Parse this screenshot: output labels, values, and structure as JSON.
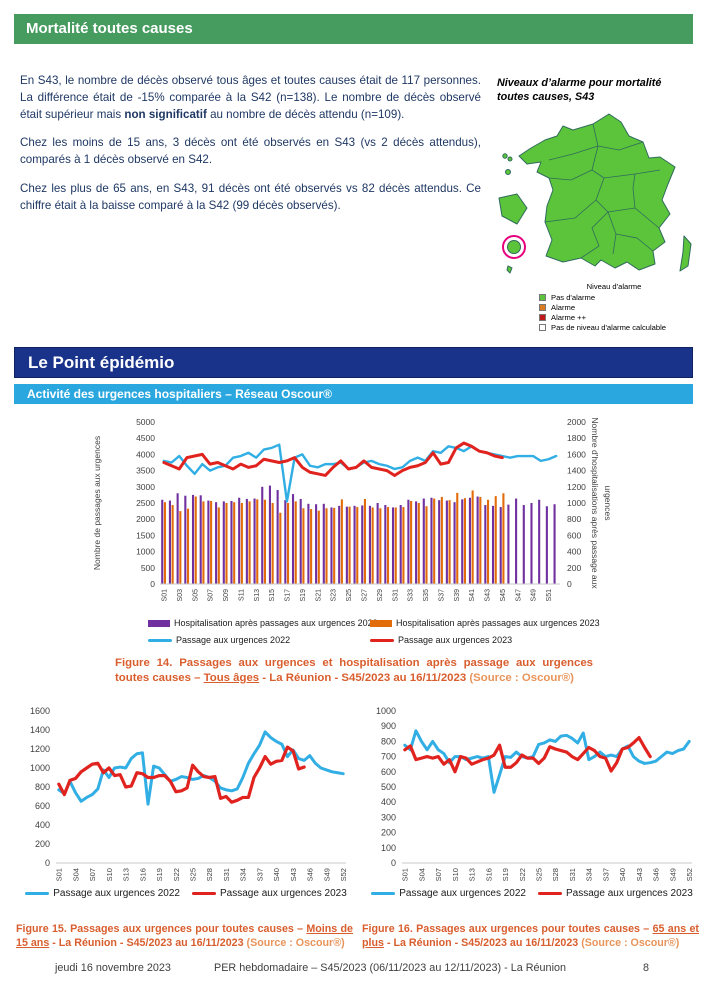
{
  "colors": {
    "green_banner": "#469B5F",
    "navy_banner": "#19338A",
    "cyan_banner": "#2AA7DF",
    "body_text": "#1F3864",
    "caption": "#D95E2E",
    "caption_source": "#E8945A"
  },
  "mortality_section": {
    "title": "Mortalité toutes causes",
    "paragraph1_start": "En S43, le nombre de décès observé tous âges et toutes causes était de 117 personnes. La différence était de -15% comparée à la S42 (n=138). Le nombre de décès observé était supérieur mais ",
    "paragraph1_bold": "non significatif",
    "paragraph1_end": " au nombre de décès attendu (n=109).",
    "paragraph2": "Chez les moins de 15 ans, 3 décès ont été observés en S43 (vs 2 décès attendus), comparés à 1 décès observé en S42.",
    "paragraph3": "Chez les plus de 65 ans, en S43, 91 décès ont été observés vs 82 décès attendus. Ce chiffre était à la baisse comparé à la S42 (99 décès observés)."
  },
  "map": {
    "title": "Niveaux d’alarme pour mortalité toutes causes, S43",
    "legend_title": "Niveau d'alarme",
    "legend": [
      {
        "label": "Pas d'alarme",
        "color": "#5BC43B"
      },
      {
        "label": "Alarme",
        "color": "#D97B21"
      },
      {
        "label": "Alarme ++",
        "color": "#C01818"
      },
      {
        "label": "Pas de niveau d'alarme calculable",
        "color": "#FFFFFF"
      }
    ],
    "colors": {
      "region_fill": "#5BC43B",
      "region_border": "#2F6B5B",
      "highlight_ring": "#E6007E"
    }
  },
  "epidemio_section": {
    "title": "Le Point épidémio",
    "subtitle": "Activité des urgences hospitaliers – Réseau Oscour®"
  },
  "figures": {
    "fig14_caption": {
      "prefix": "Figure 14. Passages aux urgences et hospitalisation après passage aux urgences toutes causes – ",
      "underlined": "Tous âges",
      "middle": " - La Réunion - S45/2023 au 16/11/2023 ",
      "source": "(Source : Oscour®)"
    },
    "fig15_caption": {
      "prefix": "Figure 15. Passages aux urgences pour toutes causes – ",
      "underlined": "Moins de 15 ans",
      "middle": " - La Réunion - S45/2023 au 16/11/2023 ",
      "source": "(Source : Oscour®)"
    },
    "fig16_caption": {
      "prefix": "Figure 16. Passages aux urgences pour toutes causes – ",
      "underlined": "65 ans et plus",
      "middle": " - La Réunion - S45/2023 au 16/11/2023 ",
      "source": "(Source : Oscour®)"
    }
  },
  "footer": {
    "date": "jeudi 16 novembre 2023",
    "center": "PER hebdomadaire – S45/2023 (06/11/2023 au 12/11/2023) - La Réunion",
    "page_number": "8"
  },
  "chart_data": [
    {
      "type": "bar",
      "title": "Passages aux urgences et hospitalisation après passage aux urgences toutes causes - Tous âges",
      "ylabel_left": "Nombre de passages aux urgences",
      "ylabel_right": "Nombre d'hospitalisations après passage aux urgences",
      "ylim_left": [
        0,
        5000,
        500
      ],
      "ylim_right": [
        0,
        2000,
        200
      ],
      "xtick_every": 2,
      "categories": [
        "S01",
        "S02",
        "S03",
        "S04",
        "S05",
        "S06",
        "S07",
        "S08",
        "S09",
        "S10",
        "S11",
        "S12",
        "S13",
        "S14",
        "S15",
        "S16",
        "S17",
        "S18",
        "S19",
        "S20",
        "S21",
        "S22",
        "S23",
        "S24",
        "S25",
        "S26",
        "S27",
        "S28",
        "S29",
        "S30",
        "S31",
        "S32",
        "S33",
        "S34",
        "S35",
        "S36",
        "S37",
        "S38",
        "S39",
        "S40",
        "S41",
        "S42",
        "S43",
        "S44",
        "S45",
        "S46",
        "S47",
        "S48",
        "S49",
        "S50",
        "S51",
        "S52"
      ],
      "series": [
        {
          "name": "Hospitalisation après passages aux urgences 2022",
          "type": "bar",
          "axis": "right",
          "color": "#7030A0",
          "values": [
            1040,
            1030,
            1120,
            1090,
            1100,
            1095,
            1030,
            1010,
            1020,
            1025,
            1065,
            1050,
            1055,
            1200,
            1215,
            1160,
            1035,
            1110,
            1050,
            990,
            985,
            990,
            945,
            965,
            955,
            965,
            970,
            965,
            1000,
            975,
            945,
            975,
            1040,
            1020,
            1055,
            1065,
            1035,
            1030,
            1010,
            1045,
            1065,
            1080,
            975,
            965,
            950,
            980,
            1055,
            975,
            1000,
            1040,
            960,
            985
          ]
        },
        {
          "name": "Hospitalisation après passages aux urgences 2023",
          "type": "bar",
          "axis": "right",
          "color": "#E36C0A",
          "values": [
            1010,
            975,
            900,
            930,
            1080,
            1020,
            1025,
            945,
            1000,
            1010,
            1000,
            1020,
            1045,
            1040,
            1000,
            880,
            1000,
            1020,
            935,
            925,
            905,
            935,
            940,
            1045,
            955,
            950,
            1050,
            945,
            935,
            950,
            945,
            950,
            1025,
            1000,
            960,
            1055,
            1075,
            1035,
            1125,
            1060,
            1155,
            1075,
            1040,
            1085,
            1120
          ]
        },
        {
          "name": "Passage aux urgences 2022",
          "type": "line",
          "axis": "left",
          "color": "#31AEE4",
          "width": 2.4,
          "values": [
            3800,
            3750,
            3950,
            3650,
            3400,
            3700,
            3500,
            3600,
            3650,
            3900,
            3950,
            4050,
            3900,
            4150,
            4200,
            4300,
            2550,
            3900,
            4000,
            3650,
            3600,
            3700,
            3700,
            3750,
            3550,
            3600,
            3750,
            3800,
            3700,
            3650,
            3550,
            3600,
            3800,
            3900,
            3800,
            4100,
            4050,
            4250,
            4200,
            4100,
            4250,
            4100,
            4050,
            4000,
            3950,
            3900,
            3950,
            3950,
            3950,
            3800,
            3850,
            3950
          ]
        },
        {
          "name": "Passage aux urgences 2023",
          "type": "line",
          "axis": "left",
          "color": "#E0231E",
          "width": 3,
          "values": [
            3750,
            3650,
            3550,
            3900,
            3950,
            4000,
            3700,
            3750,
            3650,
            3550,
            3700,
            3600,
            3650,
            3850,
            3800,
            3750,
            3800,
            3900,
            3600,
            3450,
            3400,
            3350,
            3600,
            3800,
            3550,
            3600,
            3800,
            3600,
            3550,
            3500,
            3350,
            3500,
            3600,
            3650,
            3750,
            4050,
            3700,
            3750,
            4200,
            4350,
            4250,
            4100,
            4050,
            3950,
            3900
          ]
        }
      ]
    },
    {
      "type": "line",
      "title": "Passages aux urgences pour toutes causes - Moins de 15 ans",
      "ylim_left": [
        0,
        1600,
        200
      ],
      "xtick_every": 3,
      "categories": [
        "S01",
        "S02",
        "S03",
        "S04",
        "S05",
        "S06",
        "S07",
        "S08",
        "S09",
        "S10",
        "S11",
        "S12",
        "S13",
        "S14",
        "S15",
        "S16",
        "S17",
        "S18",
        "S19",
        "S20",
        "S21",
        "S22",
        "S23",
        "S24",
        "S25",
        "S26",
        "S27",
        "S28",
        "S29",
        "S30",
        "S31",
        "S32",
        "S33",
        "S34",
        "S35",
        "S36",
        "S37",
        "S38",
        "S39",
        "S40",
        "S41",
        "S42",
        "S43",
        "S44",
        "S45",
        "S46",
        "S47",
        "S48",
        "S49",
        "S50",
        "S51",
        "S52"
      ],
      "series": [
        {
          "name": "Passage aux urgences 2022",
          "type": "line",
          "axis": "left",
          "color": "#31AEE4",
          "width": 3,
          "values": [
            770,
            730,
            860,
            740,
            650,
            690,
            720,
            780,
            980,
            900,
            1000,
            1010,
            1000,
            1100,
            1150,
            1160,
            620,
            1020,
            1000,
            930,
            860,
            880,
            910,
            900,
            880,
            890,
            920,
            900,
            860,
            790,
            770,
            760,
            780,
            900,
            1050,
            1150,
            1240,
            1380,
            1320,
            1280,
            1250,
            1120,
            1190,
            1100,
            1080,
            1130,
            1050,
            1000,
            980,
            960,
            950,
            940
          ]
        },
        {
          "name": "Passage aux urgences 2023",
          "type": "line",
          "axis": "left",
          "color": "#E0231E",
          "width": 3.2,
          "values": [
            830,
            720,
            870,
            890,
            960,
            1000,
            1040,
            1050,
            950,
            1000,
            920,
            930,
            800,
            810,
            950,
            940,
            900,
            900,
            920,
            920,
            860,
            750,
            760,
            790,
            1030,
            960,
            910,
            900,
            910,
            680,
            700,
            640,
            660,
            690,
            690,
            900,
            1000,
            1120,
            1040,
            1070,
            1080,
            1220,
            1180,
            990,
            1010
          ]
        }
      ]
    },
    {
      "type": "line",
      "title": "Passages aux urgences pour toutes causes - 65 ans et plus",
      "ylim_left": [
        0,
        1000,
        100
      ],
      "xtick_every": 3,
      "categories": [
        "S01",
        "S02",
        "S03",
        "S04",
        "S05",
        "S06",
        "S07",
        "S08",
        "S09",
        "S10",
        "S11",
        "S12",
        "S13",
        "S14",
        "S15",
        "S16",
        "S17",
        "S18",
        "S19",
        "S20",
        "S21",
        "S22",
        "S23",
        "S24",
        "S25",
        "S26",
        "S27",
        "S28",
        "S29",
        "S30",
        "S31",
        "S32",
        "S33",
        "S34",
        "S35",
        "S36",
        "S37",
        "S38",
        "S39",
        "S40",
        "S41",
        "S42",
        "S43",
        "S44",
        "S45",
        "S46",
        "S47",
        "S48",
        "S49",
        "S50",
        "S51",
        "S52"
      ],
      "series": [
        {
          "name": "Passage aux urgences 2022",
          "type": "line",
          "axis": "left",
          "color": "#31AEE4",
          "width": 3,
          "values": [
            775,
            745,
            870,
            800,
            745,
            800,
            745,
            720,
            660,
            700,
            700,
            680,
            690,
            700,
            690,
            700,
            465,
            580,
            700,
            695,
            730,
            700,
            690,
            700,
            780,
            790,
            810,
            800,
            835,
            840,
            820,
            790,
            855,
            680,
            700,
            730,
            700,
            710,
            700,
            750,
            770,
            700,
            670,
            655,
            660,
            670,
            700,
            730,
            720,
            740,
            750,
            800
          ]
        },
        {
          "name": "Passage aux urgences 2023",
          "type": "line",
          "axis": "left",
          "color": "#E0231E",
          "width": 3.2,
          "values": [
            745,
            770,
            680,
            690,
            700,
            690,
            700,
            650,
            680,
            600,
            700,
            690,
            650,
            665,
            680,
            690,
            710,
            775,
            630,
            630,
            660,
            710,
            690,
            690,
            655,
            690,
            765,
            750,
            740,
            730,
            700,
            680,
            720,
            760,
            740,
            700,
            690,
            605,
            660,
            750,
            760,
            790,
            825,
            760,
            700
          ]
        }
      ]
    }
  ]
}
